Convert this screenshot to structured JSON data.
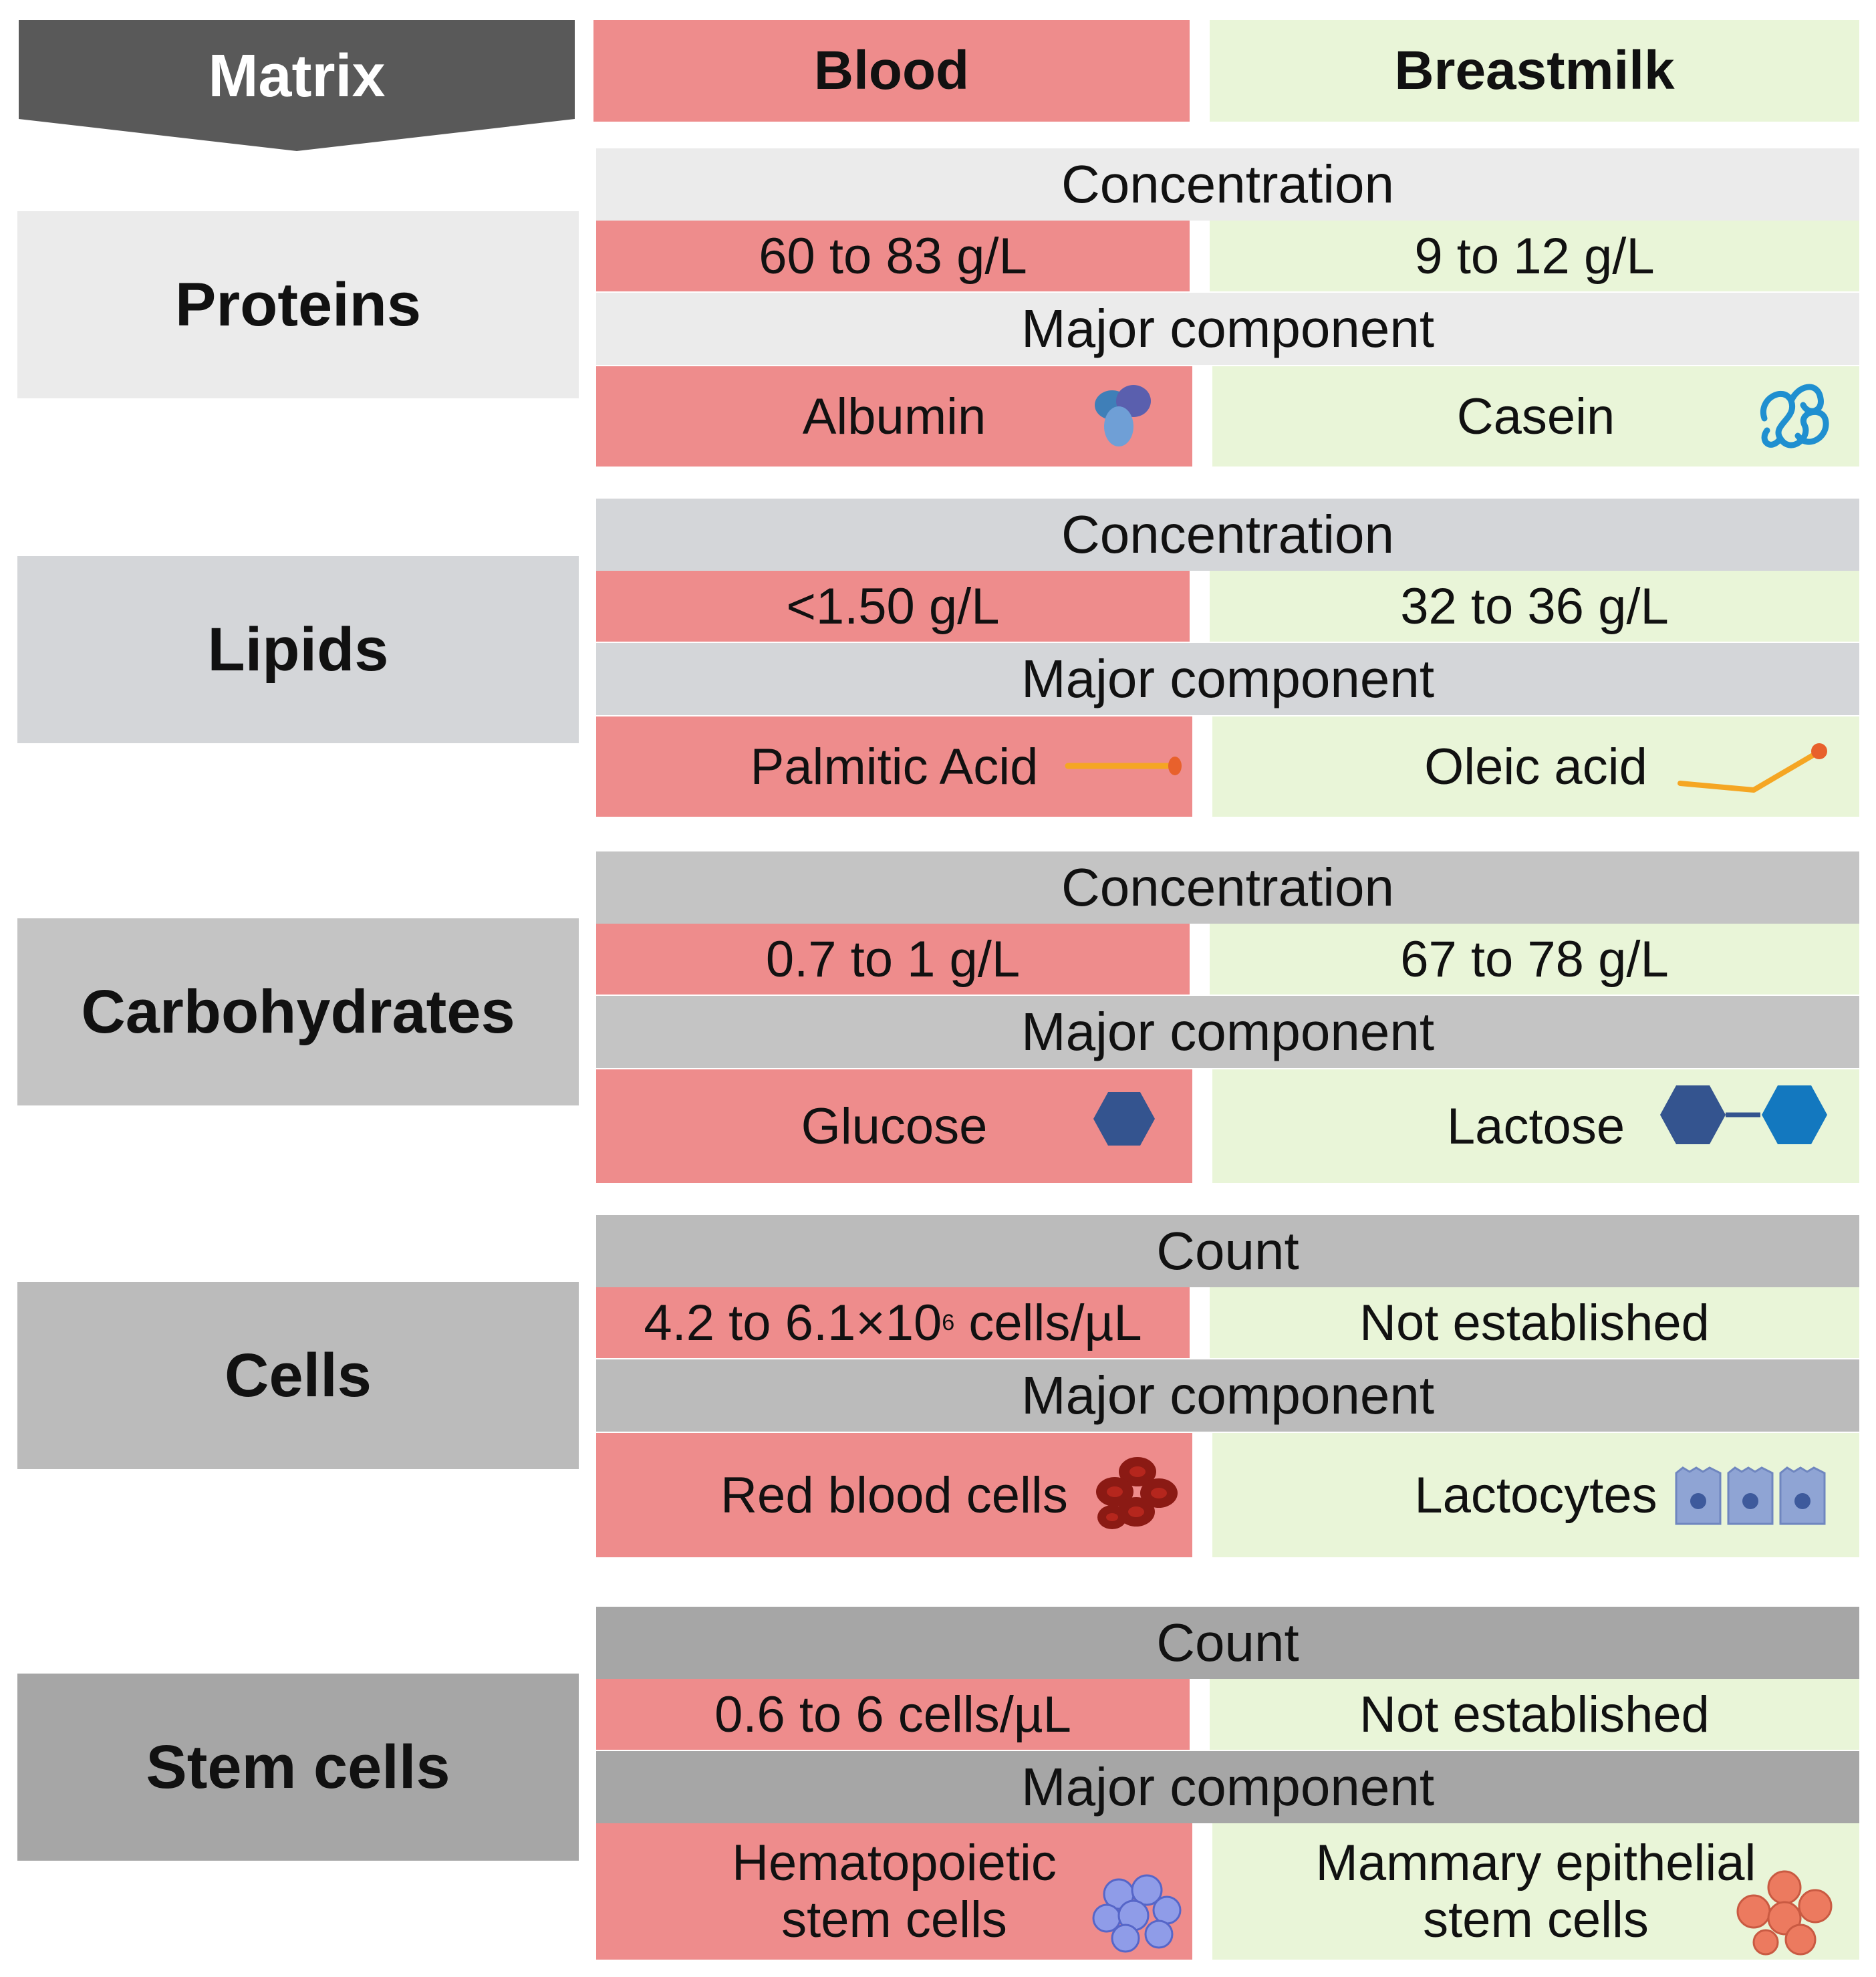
{
  "header": {
    "matrix": "Matrix",
    "blood": "Blood",
    "breastmilk": "Breastmilk"
  },
  "colors": {
    "blood": "#ee8c8c",
    "breastmilk": "#e9f5d8",
    "matrix_header": "#595959"
  },
  "rows": [
    {
      "label": "Proteins",
      "measure": "Concentration",
      "blood_value": "60 to 83 g/L",
      "milk_value": "9 to 12 g/L",
      "component_label": "Major component",
      "blood_component": "Albumin",
      "milk_component": "Casein",
      "blood_icon": "albumin-protein-icon",
      "milk_icon": "casein-protein-icon"
    },
    {
      "label": "Lipids",
      "measure": "Concentration",
      "blood_value": "<1.50 g/L",
      "milk_value": "32 to 36 g/L",
      "component_label": "Major component",
      "blood_component": "Palmitic Acid",
      "milk_component": "Oleic acid",
      "blood_icon": "palmitic-acid-chain-icon",
      "milk_icon": "oleic-acid-chain-icon"
    },
    {
      "label": "Carbohydrates",
      "measure": "Concentration",
      "blood_value": "0.7 to 1 g/L",
      "milk_value": "67 to 78 g/L",
      "component_label": "Major component",
      "blood_component": "Glucose",
      "milk_component": "Lactose",
      "blood_icon": "glucose-hexagon-icon",
      "milk_icon": "lactose-hexagons-icon"
    },
    {
      "label": "Cells",
      "measure": "Count",
      "blood_value_base": "4.2 to 6.1×10",
      "blood_value_exp": "6",
      "blood_value_unit": " cells/µL",
      "milk_value": "Not established",
      "component_label": "Major component",
      "blood_component": "Red blood cells",
      "milk_component": "Lactocytes",
      "blood_icon": "red-blood-cells-icon",
      "milk_icon": "lactocytes-icon"
    },
    {
      "label": "Stem cells",
      "measure": "Count",
      "blood_value": "0.6 to 6 cells/µL",
      "milk_value": "Not established",
      "component_label": "Major component",
      "blood_component_line1": "Hematopoietic",
      "blood_component_line2": "stem cells",
      "milk_component_line1": "Mammary epithelial",
      "milk_component_line2": "stem cells",
      "blood_icon": "hematopoietic-stem-cells-icon",
      "milk_icon": "mammary-stem-cells-icon"
    }
  ]
}
